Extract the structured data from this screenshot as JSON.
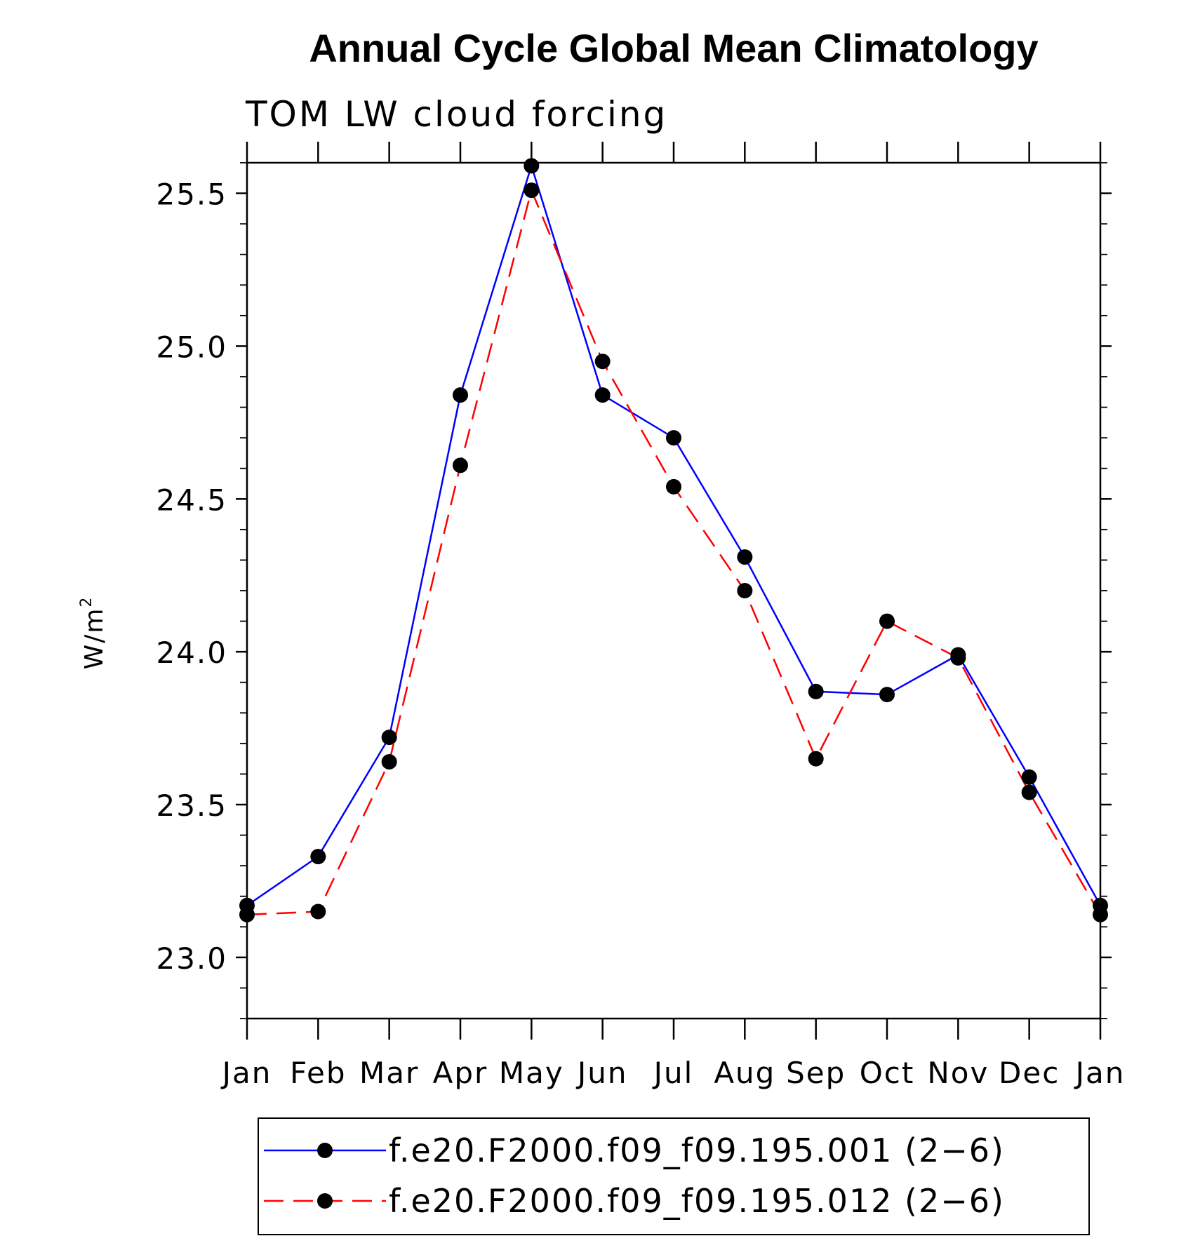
{
  "chart_data": {
    "type": "line",
    "title": "Annual Cycle Global Mean Climatology",
    "subtitle": "TOM LW cloud forcing",
    "ylabel": "W/m",
    "ylabel_superscript": "2",
    "xlabel": "",
    "categories": [
      "Jan",
      "Feb",
      "Mar",
      "Apr",
      "May",
      "Jun",
      "Jul",
      "Aug",
      "Sep",
      "Oct",
      "Nov",
      "Dec",
      "Jan"
    ],
    "ylim": [
      22.8,
      25.6
    ],
    "yticks": [
      23.0,
      23.5,
      24.0,
      24.5,
      25.0,
      25.5
    ],
    "ytick_labels": [
      "23.0",
      "23.5",
      "24.0",
      "24.5",
      "25.0",
      "25.5"
    ],
    "grid": false,
    "legend_position": "bottom",
    "series": [
      {
        "name": "f.e20.F2000.f09_f09.195.001 (2−6)",
        "color": "#0000ff",
        "style": "solid",
        "marker": "circle",
        "values": [
          23.17,
          23.33,
          23.72,
          24.84,
          25.59,
          24.84,
          24.7,
          24.31,
          23.87,
          23.86,
          23.99,
          23.59,
          23.17
        ]
      },
      {
        "name": "f.e20.F2000.f09_f09.195.012 (2−6)",
        "color": "#ff0000",
        "style": "dashed",
        "marker": "circle",
        "values": [
          23.14,
          23.15,
          23.64,
          24.61,
          25.51,
          24.95,
          24.54,
          24.2,
          23.65,
          24.1,
          23.98,
          23.54,
          23.14
        ]
      }
    ]
  }
}
